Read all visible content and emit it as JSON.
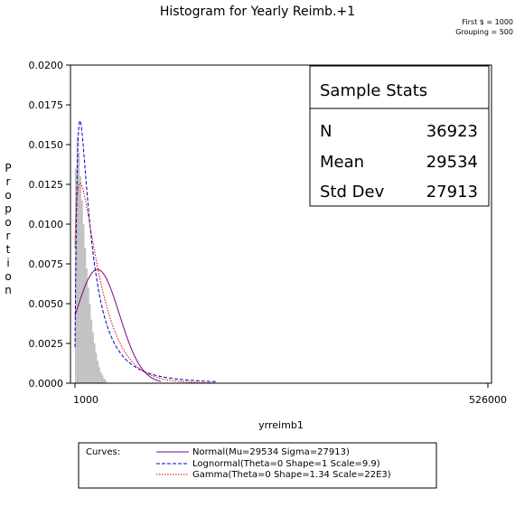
{
  "chart_data": {
    "type": "histogram",
    "title": "Histogram for Yearly Reimb.+1",
    "notes": [
      "First $ = 1000",
      "Grouping = 500"
    ],
    "xlabel": "yrreimb1",
    "ylabel": "Proportion",
    "xlim": [
      1000,
      526000
    ],
    "ylim": [
      0,
      0.02
    ],
    "x_ticks": [
      "1000",
      "526000"
    ],
    "y_ticks": [
      "0.0000",
      "0.0025",
      "0.0050",
      "0.0075",
      "0.0100",
      "0.0125",
      "0.0150",
      "0.0175",
      "0.0200"
    ],
    "histogram": {
      "bin_width": 500,
      "color": "#c0c0c0",
      "approx_proportions": [
        0.0135,
        0.0155,
        0.0145,
        0.013,
        0.0115,
        0.01,
        0.0085,
        0.0072,
        0.006,
        0.005,
        0.004,
        0.0032,
        0.0025,
        0.0019,
        0.0014,
        0.001,
        0.0007,
        0.0005,
        0.0003,
        0.0002
      ]
    },
    "series": [
      {
        "name": "Normal(Mu=29534 Sigma=27913)",
        "color": "#800080",
        "dash": "solid",
        "distribution": "normal",
        "mu": 29534,
        "sigma": 27913
      },
      {
        "name": "Lognormal(Theta=0 Shape=1 Scale=9.9)",
        "color": "#0000cc",
        "dash": "dashed",
        "distribution": "lognormal",
        "theta": 0,
        "shape": 1,
        "scale": 9.9
      },
      {
        "name": "Gamma(Theta=0 Shape=1.34 Scale=22E3)",
        "color": "#dd0000",
        "dash": "dotted",
        "distribution": "gamma",
        "theta": 0,
        "shape": 1.34,
        "scale": 22000
      }
    ],
    "legend_title": "Curves:",
    "legend_placement": "bottom",
    "stats_box": {
      "title": "Sample Stats",
      "rows": [
        {
          "label": "N",
          "value": "36923"
        },
        {
          "label": "Mean",
          "value": "29534"
        },
        {
          "label": "Std Dev",
          "value": "27913"
        }
      ],
      "placement": "top-right"
    },
    "grid": false
  }
}
